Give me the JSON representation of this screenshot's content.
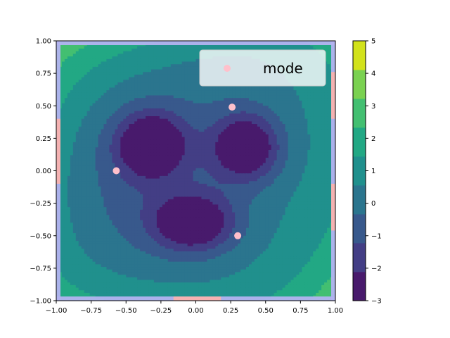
{
  "chart_data": {
    "type": "heatmap",
    "subtype": "filled-contour",
    "title": "",
    "xlabel": "",
    "ylabel": "",
    "xlim": [
      -1.0,
      1.0
    ],
    "ylim": [
      -1.0,
      1.0
    ],
    "x_ticks": [
      "−1.00",
      "−0.75",
      "−0.50",
      "−0.25",
      "0.00",
      "0.25",
      "0.50",
      "0.75",
      "1.00"
    ],
    "y_ticks": [
      "−1.00",
      "−0.75",
      "−0.50",
      "−0.25",
      "0.00",
      "0.25",
      "0.50",
      "0.75",
      "1.00"
    ],
    "grid": false,
    "colormap": "viridis",
    "levels": [
      -3,
      -2,
      -1,
      0,
      1,
      2,
      3,
      4,
      5
    ],
    "level_colors": [
      "#481a6c",
      "#433e85",
      "#38598c",
      "#2b758e",
      "#20908d",
      "#22a884",
      "#43bf71",
      "#7ad151",
      "#d2e21b"
    ],
    "colorbar_ticks": [
      "−3",
      "−2",
      "−1",
      "0",
      "1",
      "2",
      "3",
      "4",
      "5"
    ],
    "border_colors": {
      "frame": "#b3b3f0",
      "accent": "#f4b2b2"
    },
    "minima": [
      {
        "x": -0.32,
        "y": 0.2,
        "depth": 4.4,
        "sx": 0.17,
        "sy": 0.17
      },
      {
        "x": 0.36,
        "y": 0.18,
        "depth": 4.4,
        "sx": 0.17,
        "sy": 0.18
      },
      {
        "x": -0.02,
        "y": -0.4,
        "depth": 4.3,
        "sx": 0.2,
        "sy": 0.15
      }
    ],
    "series": [
      {
        "name": "mode",
        "kind": "scatter",
        "color": "#ffc0cb",
        "points": [
          {
            "x": 0.26,
            "y": 0.49
          },
          {
            "x": -0.57,
            "y": 0.0
          },
          {
            "x": 0.3,
            "y": -0.5
          }
        ]
      }
    ],
    "legend": {
      "placement": "upper-right",
      "label": "mode"
    }
  }
}
